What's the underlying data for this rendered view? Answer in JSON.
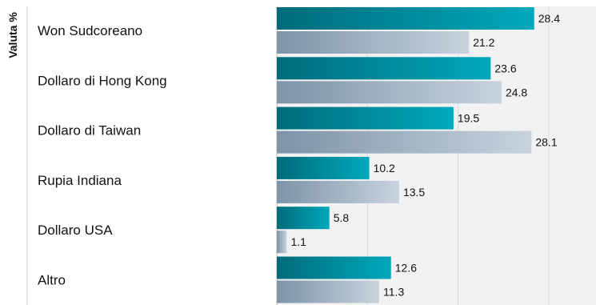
{
  "chart_data": {
    "type": "bar",
    "orientation": "horizontal",
    "ylabel": "Valuta %",
    "categories": [
      "Won Sudcoreano",
      "Dollaro di Hong Kong",
      "Dollaro di Taiwan",
      "Rupia Indiana",
      "Dollaro USA",
      "Altro"
    ],
    "series": [
      {
        "values": [
          28.4,
          23.6,
          19.5,
          10.2,
          5.8,
          12.6
        ],
        "color": "#0097a7"
      },
      {
        "values": [
          21.2,
          24.8,
          28.1,
          13.5,
          1.1,
          11.3
        ],
        "color": "#9fb1c3"
      }
    ],
    "xlim": [
      0,
      30
    ],
    "gridlines": [
      0,
      10,
      20,
      30
    ],
    "grid": true,
    "background_color": "#f2f2f2"
  }
}
